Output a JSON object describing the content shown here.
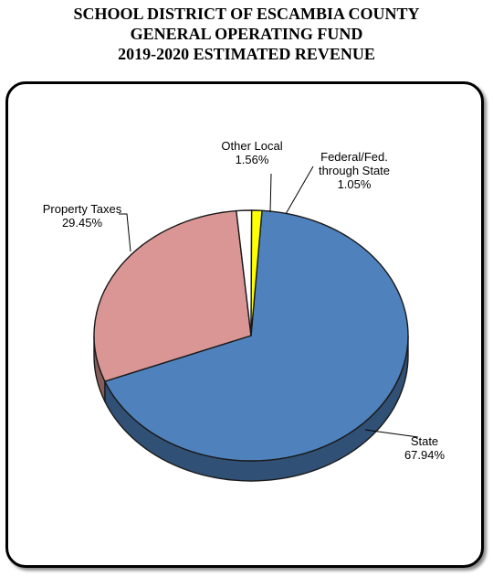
{
  "title_lines": [
    "SCHOOL DISTRICT OF ESCAMBIA COUNTY",
    "GENERAL OPERATING FUND",
    "2019-2020 ESTIMATED REVENUE"
  ],
  "chart_data": {
    "type": "pie",
    "title": "SCHOOL DISTRICT OF ESCAMBIA COUNTY GENERAL OPERATING FUND 2019-2020 ESTIMATED REVENUE",
    "slices": [
      {
        "name": "State",
        "value": 67.94,
        "pct_label": "67.94%",
        "color": "#4f81bd"
      },
      {
        "name": "Property Taxes",
        "value": 29.45,
        "pct_label": "29.45%",
        "color": "#d99694"
      },
      {
        "name": "Other Local",
        "value": 1.56,
        "pct_label": "1.56%",
        "color": "#ffffff"
      },
      {
        "name_lines": [
          "Federal/Fed.",
          "through State"
        ],
        "name": "Federal/Fed. through State",
        "value": 1.05,
        "pct_label": "1.05%",
        "color": "#ffff00"
      }
    ],
    "style": "3d-tilted",
    "legend": "none"
  }
}
